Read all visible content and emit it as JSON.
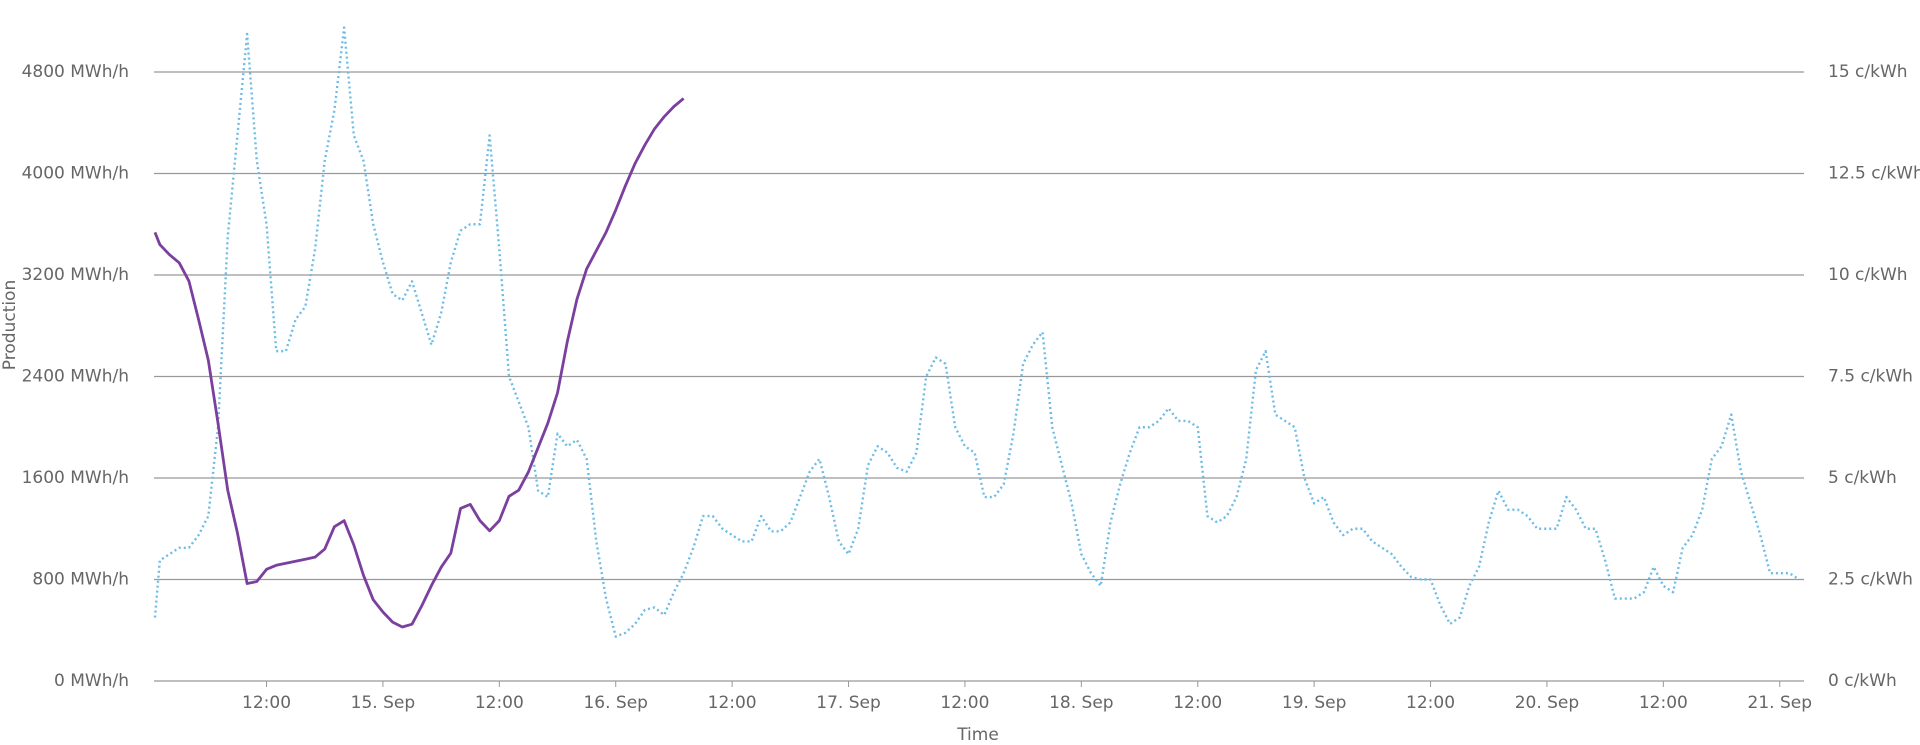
{
  "chart_data": {
    "type": "line",
    "ylabel": "Production",
    "xlabel": "Time",
    "xlim": [
      0.4,
      170.5
    ],
    "xticks": [
      {
        "value": 12,
        "label": "12:00"
      },
      {
        "value": 24,
        "label": "15. Sep"
      },
      {
        "value": 36,
        "label": "12:00"
      },
      {
        "value": 48,
        "label": "16. Sep"
      },
      {
        "value": 60,
        "label": "12:00"
      },
      {
        "value": 72,
        "label": "17. Sep"
      },
      {
        "value": 84,
        "label": "12:00"
      },
      {
        "value": 96,
        "label": "18. Sep"
      },
      {
        "value": 108,
        "label": "12:00"
      },
      {
        "value": 120,
        "label": "19. Sep"
      },
      {
        "value": 132,
        "label": "12:00"
      },
      {
        "value": 144,
        "label": "20. Sep"
      },
      {
        "value": 156,
        "label": "12:00"
      },
      {
        "value": 168,
        "label": "21. Sep"
      }
    ],
    "ylim": [
      0,
      4800
    ],
    "yticks": [
      {
        "value": 0,
        "label": "0 MWh/h"
      },
      {
        "value": 800,
        "label": "800 MWh/h"
      },
      {
        "value": 1600,
        "label": "1600 MWh/h"
      },
      {
        "value": 2400,
        "label": "2400 MWh/h"
      },
      {
        "value": 3200,
        "label": "3200 MWh/h"
      },
      {
        "value": 4000,
        "label": "4000 MWh/h"
      },
      {
        "value": 4800,
        "label": "4800 MWh/h"
      }
    ],
    "y2lim": [
      0,
      15
    ],
    "y2ticks": [
      {
        "value": 0,
        "label": "0 c/kWh"
      },
      {
        "value": 2.5,
        "label": "2.5 c/kWh"
      },
      {
        "value": 5,
        "label": "5 c/kWh"
      },
      {
        "value": 7.5,
        "label": "7.5 c/kWh"
      },
      {
        "value": 10,
        "label": "10 c/kWh"
      },
      {
        "value": 12.5,
        "label": "12.5 c/kWh"
      },
      {
        "value": 15,
        "label": "15 c/kWh"
      }
    ],
    "grid": true,
    "series": [
      {
        "color": "#6cbce6",
        "dashed": true,
        "axis": "y",
        "x": [
          0.5,
          1,
          2,
          3,
          4,
          5,
          6,
          7,
          8,
          9,
          10,
          11,
          12,
          13,
          14,
          15,
          16,
          17,
          18,
          19,
          20,
          21,
          22,
          23,
          24,
          25,
          26,
          27,
          28,
          29,
          30,
          31,
          32,
          33,
          34,
          35,
          36,
          37,
          38,
          39,
          40,
          41,
          42,
          43,
          44,
          45,
          46,
          47,
          48,
          49,
          50,
          51,
          52,
          53,
          54,
          55,
          56,
          57,
          58,
          59,
          60,
          61,
          62,
          63,
          64,
          65,
          66,
          67,
          68,
          69,
          70,
          71,
          72,
          73,
          74,
          75,
          76,
          77,
          78,
          79,
          80,
          81,
          82,
          83,
          84,
          85,
          86,
          87,
          88,
          89,
          90,
          91,
          92,
          93,
          94,
          95,
          96,
          97,
          98,
          99,
          100,
          101,
          102,
          103,
          104,
          105,
          106,
          107,
          108,
          109,
          110,
          111,
          112,
          113,
          114,
          115,
          116,
          117,
          118,
          119,
          120,
          121,
          122,
          123,
          124,
          125,
          126,
          127,
          128,
          129,
          130,
          131,
          132,
          133,
          134,
          135,
          136,
          137,
          138,
          139,
          140,
          141,
          142,
          143,
          144,
          145,
          146,
          147,
          148,
          149,
          150,
          151,
          152,
          153,
          154,
          155,
          156,
          157,
          158,
          159,
          160,
          161,
          162,
          163,
          164,
          165,
          166,
          167,
          168,
          169,
          170
        ],
        "values": [
          500,
          950,
          1000,
          1050,
          1050,
          1150,
          1300,
          2000,
          3500,
          4300,
          5100,
          4100,
          3600,
          2600,
          2600,
          2850,
          2950,
          3400,
          4100,
          4500,
          5150,
          4300,
          4100,
          3600,
          3300,
          3050,
          3000,
          3150,
          2900,
          2650,
          2900,
          3300,
          3550,
          3600,
          3600,
          4300,
          3400,
          2400,
          2200,
          2000,
          1500,
          1450,
          1950,
          1850,
          1900,
          1750,
          1100,
          650,
          350,
          380,
          450,
          560,
          580,
          520,
          700,
          850,
          1050,
          1300,
          1300,
          1200,
          1150,
          1100,
          1100,
          1300,
          1180,
          1180,
          1250,
          1450,
          1650,
          1750,
          1450,
          1100,
          1000,
          1200,
          1700,
          1850,
          1800,
          1680,
          1650,
          1800,
          2400,
          2550,
          2500,
          2000,
          1850,
          1800,
          1450,
          1450,
          1550,
          1950,
          2500,
          2650,
          2750,
          2000,
          1700,
          1400,
          1000,
          850,
          750,
          1250,
          1550,
          1800,
          2000,
          2000,
          2050,
          2150,
          2050,
          2050,
          2000,
          1300,
          1250,
          1300,
          1450,
          1750,
          2450,
          2600,
          2100,
          2050,
          2000,
          1600,
          1400,
          1450,
          1250,
          1150,
          1200,
          1200,
          1100,
          1050,
          1000,
          900,
          820,
          800,
          800,
          600,
          450,
          500,
          750,
          900,
          1250,
          1500,
          1350,
          1350,
          1300,
          1200,
          1200,
          1200,
          1450,
          1350,
          1200,
          1200,
          950,
          650,
          650,
          650,
          700,
          900,
          750,
          700,
          1050,
          1150,
          1350,
          1750,
          1850,
          2100,
          1650,
          1400,
          1150,
          850,
          850,
          850,
          800
        ]
      },
      {
        "color": "#7b3f9e",
        "dashed": false,
        "axis": "y2",
        "x": [
          0.5,
          1,
          2,
          3,
          4,
          5,
          6,
          7,
          8,
          9,
          10,
          11,
          12,
          13,
          14,
          15,
          16,
          17,
          18,
          19,
          20,
          21,
          22,
          23,
          24,
          25,
          26,
          27,
          28,
          29,
          30,
          31,
          32,
          33,
          34,
          35,
          36,
          37,
          38,
          39,
          40,
          41,
          42,
          43,
          44,
          45,
          46,
          47,
          48,
          49,
          50,
          51,
          52,
          53,
          54,
          55
        ],
        "values": [
          11.05,
          10.75,
          10.5,
          10.3,
          9.85,
          8.9,
          7.9,
          6.35,
          4.7,
          3.65,
          2.4,
          2.45,
          2.75,
          2.85,
          2.9,
          2.95,
          3.0,
          3.05,
          3.25,
          3.8,
          3.95,
          3.35,
          2.6,
          2.0,
          1.7,
          1.45,
          1.33,
          1.4,
          1.85,
          2.35,
          2.8,
          3.15,
          4.25,
          4.35,
          3.95,
          3.7,
          3.95,
          4.55,
          4.7,
          5.15,
          5.75,
          6.35,
          7.1,
          8.35,
          9.4,
          10.15,
          10.6,
          11.05,
          11.6,
          12.2,
          12.75,
          13.2,
          13.6,
          13.9,
          14.15,
          14.35
        ]
      }
    ]
  }
}
